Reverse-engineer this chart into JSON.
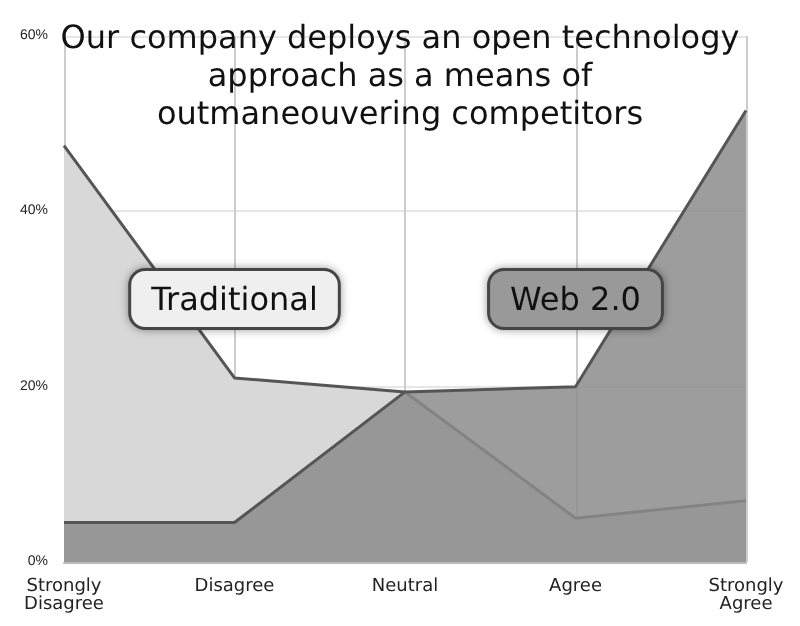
{
  "chart_data": {
    "type": "area",
    "title": "Our company deploys an open technology approach as a means of outmaneouvering competitors",
    "categories": [
      "Strongly Disagree",
      "Disagree",
      "Neutral",
      "Agree",
      "Strongly Agree"
    ],
    "series": [
      {
        "name": "Traditional",
        "color": "#d8d8d8",
        "values": [
          47.5,
          21,
          19.4,
          5,
          7
        ]
      },
      {
        "name": "Web 2.0",
        "color": "#8c8c8c",
        "values": [
          4.5,
          4.5,
          19.4,
          20,
          51.5
        ]
      }
    ],
    "ylim": [
      0,
      60
    ],
    "yticks": [
      {
        "value": 0,
        "label": "0%"
      },
      {
        "value": 20,
        "label": "20%"
      },
      {
        "value": 40,
        "label": "40%"
      },
      {
        "value": 60,
        "label": "60%"
      }
    ],
    "grid": true,
    "legend": false
  }
}
